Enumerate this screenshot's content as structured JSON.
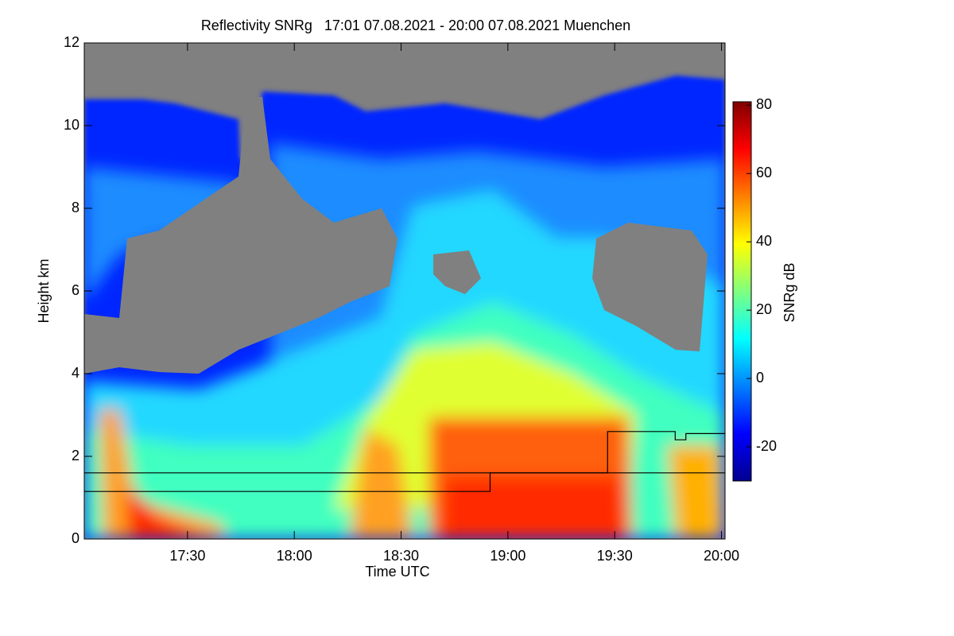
{
  "chart_data": {
    "type": "heatmap",
    "title": "Reflectivity SNRg   17:01 07.08.2021 - 20:00 07.08.2021 Muenchen",
    "x_label": "Time UTC",
    "y_label": "Height km",
    "xlim": [
      1021,
      1201
    ],
    "xticks": [
      {
        "value": 1050,
        "label": "17:30"
      },
      {
        "value": 1080,
        "label": "18:00"
      },
      {
        "value": 1110,
        "label": "18:30"
      },
      {
        "value": 1140,
        "label": "19:00"
      },
      {
        "value": 1170,
        "label": "19:30"
      },
      {
        "value": 1200,
        "label": "20:00"
      }
    ],
    "ylim": [
      0,
      12
    ],
    "yticks": [
      0,
      2,
      4,
      6,
      8,
      10,
      12
    ],
    "colorbar": {
      "label": "SNRg dB",
      "lim": [
        -30,
        81
      ],
      "ticks": [
        -20,
        0,
        20,
        40,
        60,
        80
      ]
    },
    "series": [
      {
        "color": "#000000",
        "x": [
          1021,
          1201
        ],
        "values": [
          1.6,
          1.6
        ]
      },
      {
        "color": "#000000",
        "x": [
          1021,
          1135,
          1135,
          1168,
          1168,
          1187,
          1187,
          1190,
          1190,
          1201
        ],
        "values": [
          1.15,
          1.15,
          1.6,
          1.6,
          2.6,
          2.6,
          2.4,
          2.4,
          2.55,
          2.55
        ]
      }
    ]
  }
}
